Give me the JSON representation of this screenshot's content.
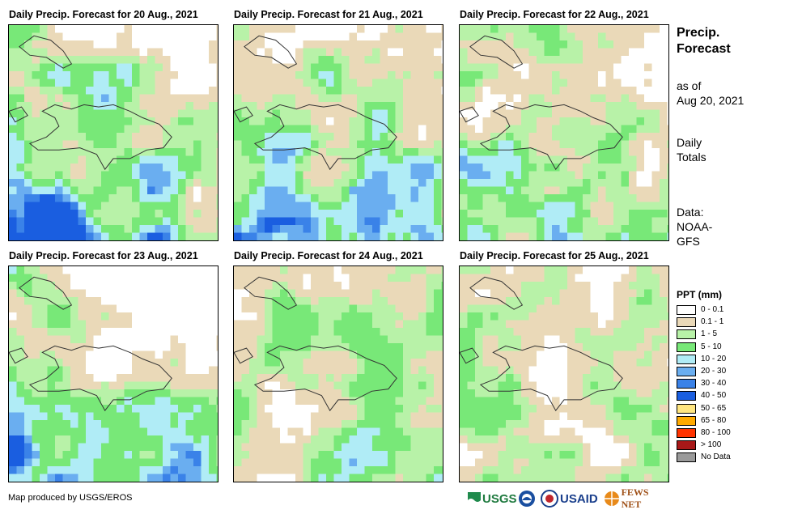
{
  "panels": [
    {
      "title": "Daily Precip. Forecast for 20 Aug., 2021",
      "variant": 0
    },
    {
      "title": "Daily Precip. Forecast for 21 Aug., 2021",
      "variant": 1
    },
    {
      "title": "Daily Precip. Forecast for 22 Aug., 2021",
      "variant": 2
    },
    {
      "title": "Daily Precip. Forecast for 23 Aug., 2021",
      "variant": 3
    },
    {
      "title": "Daily Precip. Forecast for 24 Aug., 2021",
      "variant": 4
    },
    {
      "title": "Daily Precip. Forecast for 25 Aug., 2021",
      "variant": 5
    }
  ],
  "side": {
    "title_line1": "Precip.",
    "title_line2": "Forecast",
    "asof_line1": "as of",
    "asof_line2": "Aug 20, 2021",
    "totals_line1": "Daily",
    "totals_line2": "Totals",
    "data_line1": "Data:",
    "data_line2": "NOAA-",
    "data_line3": "GFS"
  },
  "legend": {
    "title": "PPT (mm)",
    "items": [
      {
        "label": "0 - 0.1",
        "color": "#ffffff"
      },
      {
        "label": "0.1 - 1",
        "color": "#ead9b8"
      },
      {
        "label": "1 - 5",
        "color": "#b8f2a8"
      },
      {
        "label": "5 - 10",
        "color": "#78e878"
      },
      {
        "label": "10 - 20",
        "color": "#b0ecf6"
      },
      {
        "label": "20 - 30",
        "color": "#6aaef0"
      },
      {
        "label": "30 - 40",
        "color": "#3a82e8"
      },
      {
        "label": "40 - 50",
        "color": "#1a5ee0"
      },
      {
        "label": "50 - 65",
        "color": "#ffe680"
      },
      {
        "label": "65 - 80",
        "color": "#ffaa00"
      },
      {
        "label": "80 - 100",
        "color": "#ff3300"
      },
      {
        "label": "> 100",
        "color": "#a81818"
      },
      {
        "label": "No Data",
        "color": "#9a9a9a"
      }
    ]
  },
  "credit": "Map produced by USGS/EROS",
  "logos": {
    "usgs": "USGS",
    "usaid": "USAID",
    "fewsnet": "FEWS NET"
  }
}
